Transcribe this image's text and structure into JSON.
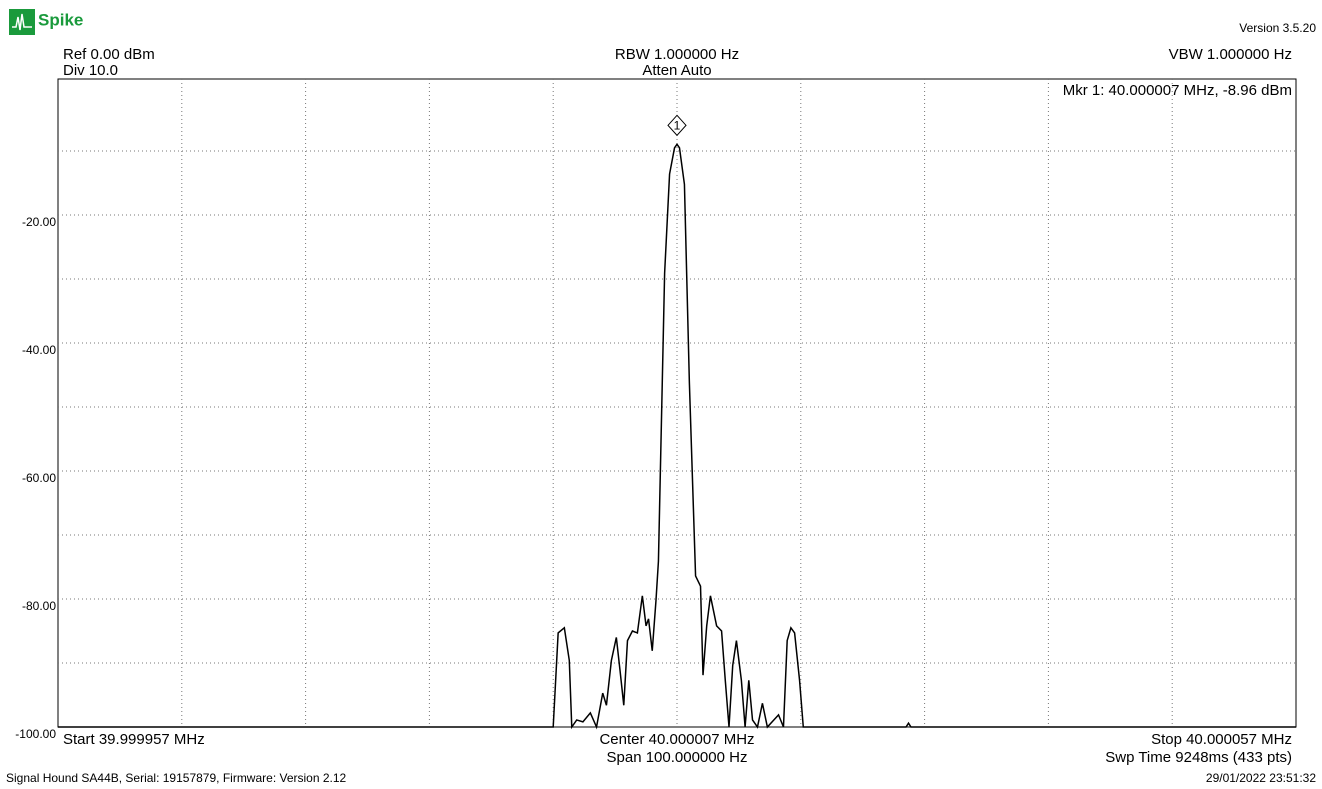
{
  "app": {
    "name": "Spike",
    "version": "Version 3.5.20"
  },
  "settings": {
    "ref": "Ref 0.00 dBm",
    "div": "Div 10.0",
    "rbw": "RBW 1.000000 Hz",
    "atten": "Atten Auto",
    "vbw": "VBW 1.000000 Hz"
  },
  "chart_data": {
    "type": "line",
    "marker_readout": "Mkr 1: 40.000007 MHz, -8.96 dBm",
    "marker": {
      "label": "1",
      "x": 40.000007,
      "value": -8.96
    },
    "xlim": [
      39.999957,
      40.000057
    ],
    "ylim": [
      -100,
      0
    ],
    "yticks": [
      {
        "value": -20,
        "label": "-20.00"
      },
      {
        "value": -40,
        "label": "-40.00"
      },
      {
        "value": -60,
        "label": "-60.00"
      },
      {
        "value": -80,
        "label": "-80.00"
      },
      {
        "value": -100,
        "label": "-100.00"
      }
    ],
    "grid": true,
    "series": [
      {
        "color": "#000000",
        "x": [
          39.999957,
          39.999997,
          39.9999974,
          39.9999979,
          39.9999983,
          39.9999985,
          39.9999989,
          39.9999994,
          40,
          40.0000005,
          40.000001,
          40.0000013,
          40.0000017,
          40.0000021,
          40.0000024,
          40.0000027,
          40.000003,
          40.0000034,
          40.0000038,
          40.0000042,
          40.0000045,
          40.0000047,
          40.000005,
          40.0000053,
          40.0000055,
          40.000006,
          40.0000064,
          40.0000068,
          40.000007,
          40.0000072,
          40.0000076,
          40.000008,
          40.0000085,
          40.0000089,
          40.0000091,
          40.0000094,
          40.0000097,
          40.0000102,
          40.0000106,
          40.0000109,
          40.0000112,
          40.0000115,
          40.0000118,
          40.0000122,
          40.0000125,
          40.0000128,
          40.0000131,
          40.0000135,
          40.0000139,
          40.0000143,
          40.0000152,
          40.0000156,
          40.0000159,
          40.0000162,
          40.0000165,
          40.0000169,
          40.0000172,
          40.0000255,
          40.0000257,
          40.0000259,
          40.000057
        ],
        "values": [
          -100,
          -100,
          -85.3,
          -84.5,
          -89.6,
          -100,
          -98.9,
          -99.2,
          -97.8,
          -100,
          -94.7,
          -96.6,
          -89.6,
          -86.0,
          -91.2,
          -96.6,
          -86.5,
          -85.0,
          -85.3,
          -79.5,
          -84.2,
          -83.1,
          -88.1,
          -80.3,
          -74.1,
          -29.1,
          -13.6,
          -9.5,
          -8.96,
          -9.5,
          -15.2,
          -46.2,
          -76.4,
          -78.0,
          -91.9,
          -84.2,
          -79.5,
          -84.2,
          -85.0,
          -92.7,
          -100,
          -90.4,
          -86.5,
          -92.7,
          -100,
          -92.7,
          -98.9,
          -100,
          -96.3,
          -100,
          -98.1,
          -100,
          -86.5,
          -84.5,
          -85.3,
          -92.7,
          -100,
          -100,
          -99.4,
          -100,
          -100
        ]
      }
    ],
    "start": "Start 39.999957 MHz",
    "center": "Center 40.000007 MHz",
    "span": "Span 100.000000 Hz",
    "stop": "Stop 40.000057 MHz",
    "sweep": "Swp Time 9248ms (433 pts)"
  },
  "footer": {
    "device": "Signal Hound SA44B, Serial: 19157879, Firmware: Version 2.12",
    "timestamp": "29/01/2022 23:51:32"
  }
}
